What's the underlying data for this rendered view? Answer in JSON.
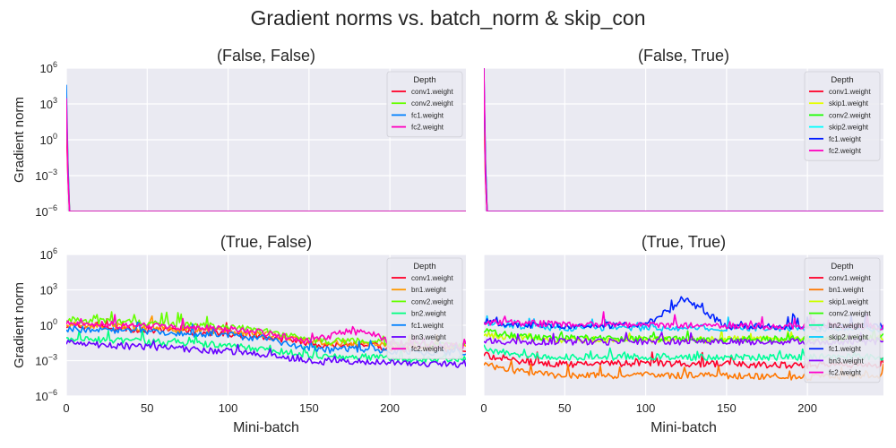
{
  "figure": {
    "title": "Gradient norms vs. batch_norm & skip_con"
  },
  "chart_data": [
    {
      "type": "line",
      "title": "(False, False)",
      "xlabel": "",
      "ylabel": "Gradient norm",
      "xlim": [
        0,
        247
      ],
      "ylim": [
        1e-06,
        1000000.0
      ],
      "yscale": "log",
      "xticks": [
        0,
        50,
        100,
        150,
        200
      ],
      "xtick_labels": [
        "",
        "",
        "",
        "",
        ""
      ],
      "yticks": [
        1e-06,
        0.001,
        1,
        1000.0,
        1000000.0
      ],
      "ytick_labels": [
        {
          "base": "10",
          "exp": "−6"
        },
        {
          "base": "10",
          "exp": "−3"
        },
        {
          "base": "10",
          "exp": "0"
        },
        {
          "base": "10",
          "exp": "3"
        },
        {
          "base": "10",
          "exp": "6"
        }
      ],
      "grid": true,
      "legend": {
        "title": "Depth",
        "position": "top-right"
      },
      "series": [
        {
          "name": "conv1.weight",
          "color": "#ff0029",
          "x": [
            0,
            1,
            2,
            247
          ],
          "y": [
            20,
            0.001,
            1e-06,
            1e-06
          ]
        },
        {
          "name": "conv2.weight",
          "color": "#66ff00",
          "x": [
            0,
            1,
            2,
            247
          ],
          "y": [
            200,
            0.01,
            1e-06,
            1e-06
          ]
        },
        {
          "name": "fc1.weight",
          "color": "#0080ff",
          "x": [
            0,
            1,
            2,
            247
          ],
          "y": [
            40000,
            0.01,
            1e-06,
            1e-06
          ]
        },
        {
          "name": "fc2.weight",
          "color": "#ff00bf",
          "x": [
            0,
            1,
            2,
            247
          ],
          "y": [
            3000,
            0.001,
            1e-06,
            1e-06
          ]
        }
      ]
    },
    {
      "type": "line",
      "title": "(False, True)",
      "xlabel": "",
      "ylabel": "",
      "xlim": [
        0,
        247
      ],
      "ylim": [
        1e-06,
        1000000.0
      ],
      "yscale": "log",
      "xticks": [
        0,
        50,
        100,
        150,
        200
      ],
      "xtick_labels": [
        "",
        "",
        "",
        "",
        ""
      ],
      "yticks": [
        1e-06,
        0.001,
        1,
        1000.0,
        1000000.0
      ],
      "ytick_labels": [],
      "grid": true,
      "legend": {
        "title": "Depth",
        "position": "top-right"
      },
      "series": [
        {
          "name": "conv1.weight",
          "color": "#ff0029",
          "x": [
            0,
            1,
            2,
            247
          ],
          "y": [
            1000,
            0.001,
            1e-06,
            1e-06
          ]
        },
        {
          "name": "skip1.weight",
          "color": "#e6ff00",
          "x": [
            0,
            1,
            2,
            247
          ],
          "y": [
            5000,
            0.001,
            1e-06,
            1e-06
          ]
        },
        {
          "name": "conv2.weight",
          "color": "#1aff00",
          "x": [
            0,
            1,
            2,
            247
          ],
          "y": [
            30000,
            0.01,
            1e-06,
            1e-06
          ]
        },
        {
          "name": "skip2.weight",
          "color": "#00ffff",
          "x": [
            0,
            1,
            2,
            247
          ],
          "y": [
            100000,
            0.01,
            1e-06,
            1e-06
          ]
        },
        {
          "name": "fc1.weight",
          "color": "#0019ff",
          "x": [
            0,
            1,
            2,
            247
          ],
          "y": [
            1000000,
            0.01,
            1e-06,
            1e-06
          ]
        },
        {
          "name": "fc2.weight",
          "color": "#ff00bf",
          "x": [
            0,
            1,
            2,
            247
          ],
          "y": [
            1000000,
            0.001,
            1e-06,
            1e-06
          ]
        }
      ]
    },
    {
      "type": "line",
      "title": "(True, False)",
      "xlabel": "Mini-batch",
      "ylabel": "Gradient norm",
      "xlim": [
        0,
        247
      ],
      "ylim": [
        1e-06,
        1000000.0
      ],
      "yscale": "log",
      "xticks": [
        0,
        50,
        100,
        150,
        200
      ],
      "xtick_labels": [
        "0",
        "50",
        "100",
        "150",
        "200"
      ],
      "yticks": [
        1e-06,
        0.001,
        1,
        1000.0,
        1000000.0
      ],
      "ytick_labels": [
        {
          "base": "10",
          "exp": "−6"
        },
        {
          "base": "10",
          "exp": "−3"
        },
        {
          "base": "10",
          "exp": "0"
        },
        {
          "base": "10",
          "exp": "3"
        },
        {
          "base": "10",
          "exp": "6"
        }
      ],
      "grid": true,
      "legend": {
        "title": "Depth",
        "position": "top-right"
      },
      "series": [
        {
          "name": "conv1.weight",
          "color": "#ff0029",
          "x": [
            0,
            25,
            50,
            75,
            100,
            125,
            150,
            160,
            175,
            190,
            200,
            225,
            247
          ],
          "y": [
            0.8,
            0.6,
            0.4,
            0.3,
            0.2,
            0.1,
            0.03,
            0.02,
            0.02,
            0.02,
            0.01,
            0.01,
            0.01
          ]
        },
        {
          "name": "bn1.weight",
          "color": "#ff9900",
          "x": [
            0,
            25,
            50,
            75,
            100,
            125,
            150,
            160,
            175,
            190,
            200,
            225,
            247
          ],
          "y": [
            1.2,
            0.9,
            0.6,
            0.4,
            0.3,
            0.15,
            0.04,
            0.03,
            0.03,
            0.03,
            0.02,
            0.015,
            0.015
          ]
        },
        {
          "name": "conv2.weight",
          "color": "#66ff00",
          "x": [
            0,
            25,
            50,
            75,
            100,
            125,
            150,
            160,
            175,
            190,
            200,
            225,
            247
          ],
          "y": [
            3,
            2,
            1.5,
            1,
            0.8,
            0.3,
            0.06,
            0.04,
            0.05,
            0.05,
            0.03,
            0.02,
            0.02
          ]
        },
        {
          "name": "bn2.weight",
          "color": "#00ff80",
          "x": [
            0,
            25,
            50,
            75,
            100,
            125,
            150,
            160,
            175,
            190,
            200,
            225,
            247
          ],
          "y": [
            0.08,
            0.06,
            0.04,
            0.03,
            0.02,
            0.008,
            0.003,
            0.002,
            0.002,
            0.002,
            0.0015,
            0.0012,
            0.0012
          ]
        },
        {
          "name": "fc1.weight",
          "color": "#0080ff",
          "x": [
            0,
            25,
            50,
            75,
            100,
            125,
            150,
            160,
            175,
            190,
            200,
            225,
            247
          ],
          "y": [
            0.5,
            0.4,
            0.3,
            0.2,
            0.15,
            0.06,
            0.01,
            0.008,
            0.01,
            0.008,
            0.006,
            0.005,
            0.005
          ]
        },
        {
          "name": "bn3.weight",
          "color": "#6600ff",
          "x": [
            0,
            25,
            50,
            75,
            100,
            125,
            150,
            160,
            175,
            190,
            200,
            225,
            247
          ],
          "y": [
            0.03,
            0.02,
            0.015,
            0.01,
            0.006,
            0.003,
            0.001,
            0.0008,
            0.0008,
            0.0008,
            0.0006,
            0.0005,
            0.0005
          ]
        },
        {
          "name": "fc2.weight",
          "color": "#ff00bf",
          "x": [
            0,
            25,
            50,
            75,
            100,
            125,
            150,
            160,
            175,
            190,
            200,
            225,
            247
          ],
          "y": [
            1.5,
            1.2,
            0.9,
            0.7,
            0.5,
            0.2,
            0.04,
            0.1,
            0.3,
            0.2,
            0.03,
            0.02,
            0.02
          ]
        }
      ]
    },
    {
      "type": "line",
      "title": "(True, True)",
      "xlabel": "Mini-batch",
      "ylabel": "",
      "xlim": [
        0,
        247
      ],
      "ylim": [
        1e-06,
        1000000.0
      ],
      "yscale": "log",
      "xticks": [
        0,
        50,
        100,
        150,
        200
      ],
      "xtick_labels": [
        "0",
        "50",
        "100",
        "150",
        "200"
      ],
      "yticks": [
        1e-06,
        0.001,
        1,
        1000.0,
        1000000.0
      ],
      "ytick_labels": [],
      "grid": true,
      "legend": {
        "title": "Depth",
        "position": "top-right"
      },
      "series": [
        {
          "name": "conv1.weight",
          "color": "#ff0029",
          "x": [
            0,
            25,
            50,
            100,
            150,
            200,
            247
          ],
          "y": [
            0.003,
            0.0008,
            0.0005,
            0.0006,
            0.0005,
            0.0004,
            0.0004
          ]
        },
        {
          "name": "bn1.weight",
          "color": "#ff7700",
          "x": [
            0,
            25,
            50,
            100,
            150,
            200,
            247
          ],
          "y": [
            0.0005,
            0.0001,
            5e-05,
            6e-05,
            5e-05,
            4e-05,
            6e-05
          ]
        },
        {
          "name": "skip1.weight",
          "color": "#ccff00",
          "x": [
            0,
            25,
            50,
            100,
            150,
            200,
            247
          ],
          "y": [
            0.15,
            0.08,
            0.06,
            0.06,
            0.06,
            0.07,
            0.08
          ]
        },
        {
          "name": "conv2.weight",
          "color": "#33ff00",
          "x": [
            0,
            25,
            50,
            100,
            150,
            200,
            247
          ],
          "y": [
            0.3,
            0.1,
            0.08,
            0.07,
            0.06,
            0.07,
            0.08
          ]
        },
        {
          "name": "bn2.weight",
          "color": "#00ff99",
          "x": [
            0,
            25,
            50,
            100,
            150,
            200,
            247
          ],
          "y": [
            0.01,
            0.003,
            0.002,
            0.002,
            0.002,
            0.002,
            0.002
          ]
        },
        {
          "name": "skip2.weight",
          "color": "#00ccff",
          "x": [
            0,
            25,
            50,
            100,
            150,
            200,
            247
          ],
          "y": [
            1.5,
            0.8,
            0.6,
            0.6,
            0.6,
            0.5,
            0.5
          ]
        },
        {
          "name": "fc1.weight",
          "color": "#0022ff",
          "x": [
            0,
            25,
            50,
            100,
            125,
            150,
            200,
            247
          ],
          "y": [
            2,
            1,
            1,
            1,
            150,
            0.8,
            0.8,
            0.8
          ]
        },
        {
          "name": "bn3.weight",
          "color": "#8800ff",
          "x": [
            0,
            25,
            50,
            100,
            150,
            200,
            247
          ],
          "y": [
            0.05,
            0.04,
            0.04,
            0.04,
            0.04,
            0.04,
            0.04
          ]
        },
        {
          "name": "fc2.weight",
          "color": "#ff00cc",
          "x": [
            0,
            25,
            50,
            100,
            150,
            200,
            247
          ],
          "y": [
            2,
            1.5,
            1.2,
            1,
            0.9,
            0.8,
            0.8
          ]
        }
      ]
    }
  ]
}
